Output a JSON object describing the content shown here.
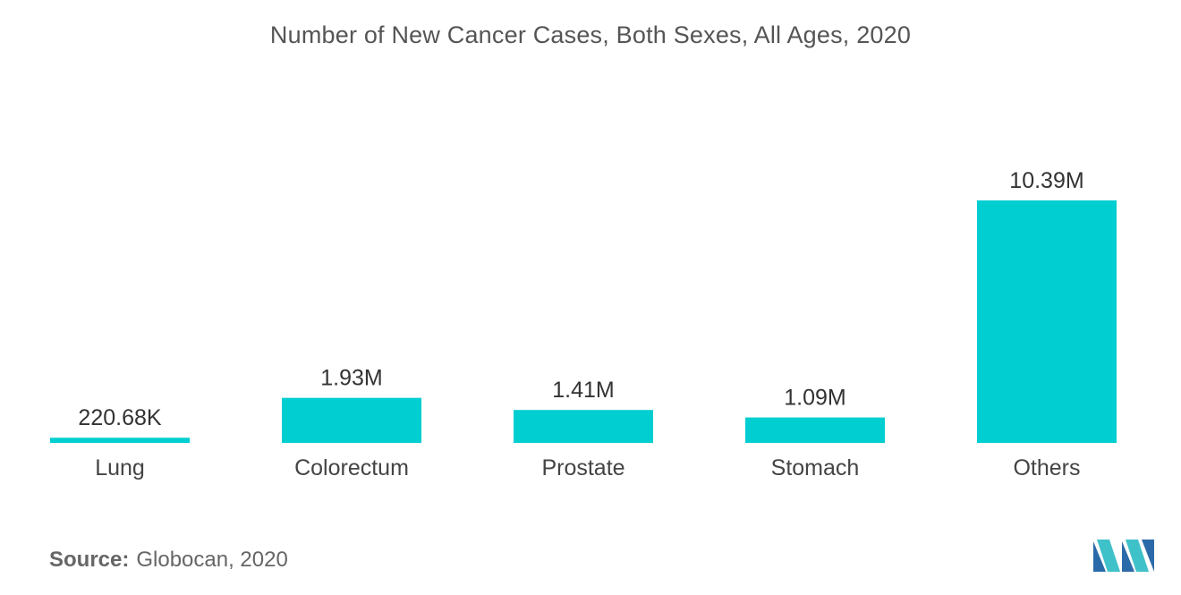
{
  "chart_data": {
    "type": "bar",
    "title": "Number of New Cancer Cases, Both Sexes, All Ages, 2020",
    "categories": [
      "Lung",
      "Colorectum",
      "Prostate",
      "Stomach",
      "Others"
    ],
    "values": [
      0.22068,
      1.93,
      1.41,
      1.09,
      10.39
    ],
    "value_labels": [
      "220.68K",
      "1.93M",
      "1.41M",
      "1.09M",
      "10.39M"
    ],
    "unit": "million cases",
    "xlabel": "",
    "ylabel": "",
    "ylim": [
      0,
      10.39
    ],
    "grid": false,
    "legend": "none",
    "bar_color": "#00ced1"
  },
  "source": {
    "label": "Source:",
    "text": "Globocan, 2020"
  },
  "logo": {
    "icon": "mordor-intelligence-logo-icon",
    "colors": [
      "#2b6aa8",
      "#3fc1c9"
    ]
  }
}
